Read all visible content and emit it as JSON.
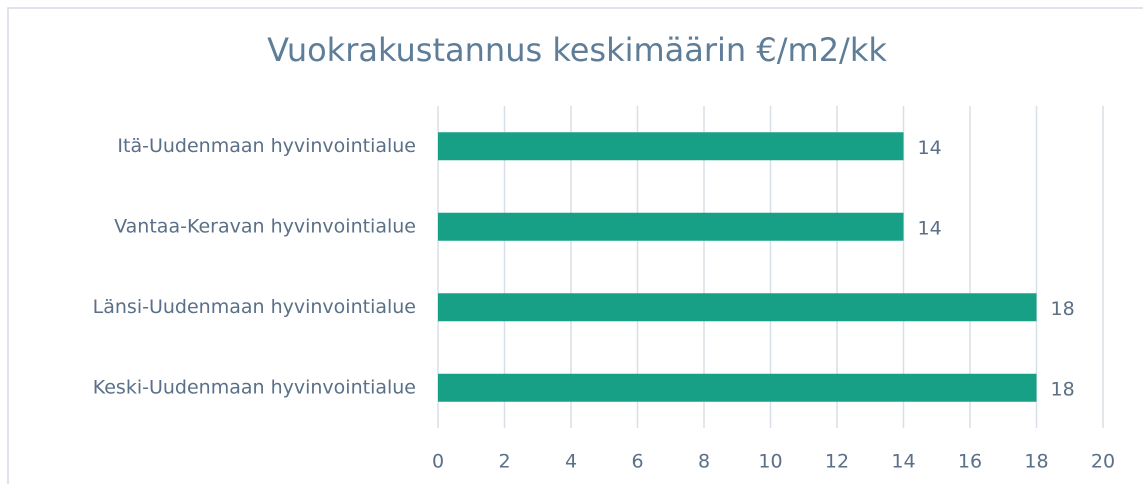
{
  "chart_data": {
    "type": "bar",
    "orientation": "horizontal",
    "title": "Vuokrakustannus keskimäärin €/m2/kk",
    "categories": [
      "Itä-Uudenmaan hyvinvointialue",
      "Vantaa-Keravan hyvinvointialue",
      "Länsi-Uudenmaan hyvinvointialue",
      "Keski-Uudenmaan hyvinvointialue"
    ],
    "values": [
      14,
      14,
      18,
      18
    ],
    "color": "#17a086",
    "xlim": [
      0,
      20
    ],
    "xticks": [
      0,
      2,
      4,
      6,
      8,
      10,
      12,
      14,
      16,
      18,
      20
    ],
    "grid": true
  }
}
